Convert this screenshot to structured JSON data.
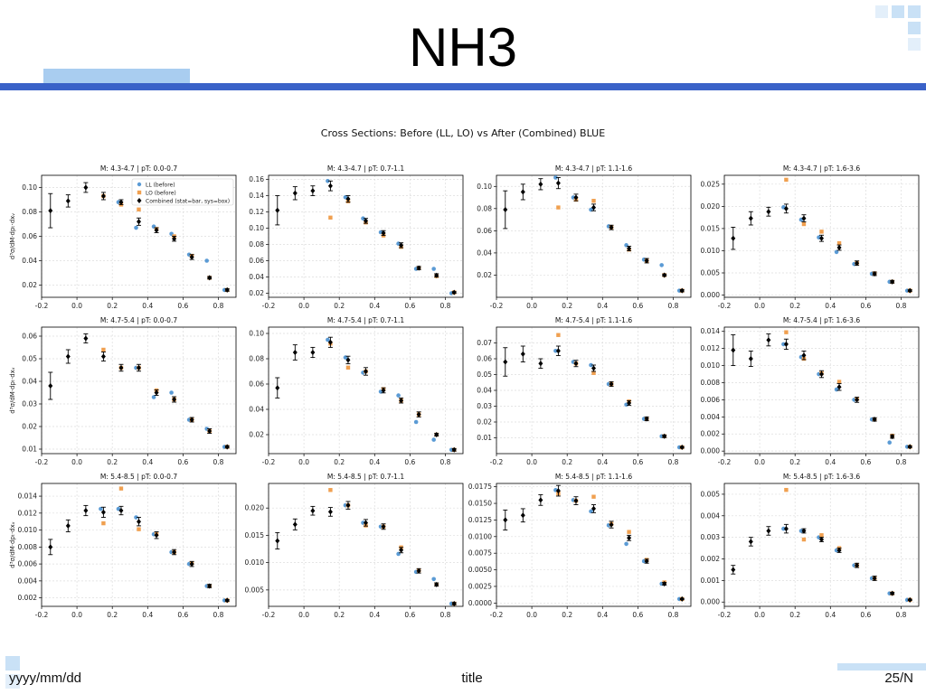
{
  "slide": {
    "title": "NH3",
    "footer_date": "yyyy/mm/dd",
    "footer_title": "title",
    "footer_page": "25/N"
  },
  "colors": {
    "accent_bar": "#3a62c8",
    "accent_light": "#a9cdf0",
    "ll": "#5b9bd5",
    "lo": "#f0a050",
    "combined": "#000000"
  },
  "chart_data": {
    "type": "scatter",
    "title": "Cross Sections: Before (LL, LO) vs After (Combined) BLUE",
    "ylabel": "d³σ/dM·dpₜ·dxᵥ",
    "legend": [
      "LL (before)",
      "LO (before)",
      "Combined (stat=bar, sys=box)"
    ],
    "legend_placement": "top-right",
    "grid": true,
    "xlim": [
      -0.2,
      0.9
    ],
    "x_ticks": [
      -0.2,
      0.0,
      0.2,
      0.4,
      0.6,
      0.8
    ],
    "x": [
      -0.15,
      -0.05,
      0.05,
      0.15,
      0.25,
      0.35,
      0.45,
      0.55,
      0.65,
      0.75,
      0.85
    ],
    "panels": [
      {
        "title": "M: 4.3-4.7 | pT: 0.0-0.7",
        "ylim": [
          0.01,
          0.11
        ],
        "yticks": [
          0.02,
          0.04,
          0.06,
          0.08,
          0.1
        ],
        "combined": [
          0.081,
          0.089,
          0.1,
          0.093,
          0.088,
          0.072,
          0.065,
          0.058,
          0.043,
          0.026,
          0.016
        ],
        "err": [
          0.014,
          0.005,
          0.004,
          0.003,
          0.002,
          0.003,
          0.002,
          0.002,
          0.002,
          0.001,
          0.001
        ],
        "ll": [
          null,
          null,
          null,
          null,
          0.088,
          0.067,
          0.068,
          0.062,
          0.045,
          0.04,
          0.016
        ],
        "lo": [
          null,
          null,
          null,
          0.093,
          0.086,
          0.082,
          0.066,
          0.06,
          0.044,
          0.026,
          0.016
        ]
      },
      {
        "title": "M: 4.3-4.7 | pT: 0.7-1.1",
        "ylim": [
          0.015,
          0.165
        ],
        "yticks": [
          0.02,
          0.04,
          0.06,
          0.08,
          0.1,
          0.12,
          0.14,
          0.16
        ],
        "combined": [
          0.122,
          0.143,
          0.146,
          0.152,
          0.136,
          0.109,
          0.094,
          0.079,
          0.051,
          0.042,
          0.021
        ],
        "err": [
          0.018,
          0.008,
          0.006,
          0.006,
          0.004,
          0.003,
          0.003,
          0.003,
          0.002,
          0.002,
          0.001
        ],
        "ll": [
          null,
          null,
          null,
          0.158,
          0.138,
          0.112,
          0.095,
          0.081,
          0.05,
          0.05,
          0.02
        ],
        "lo": [
          null,
          null,
          null,
          0.113,
          0.133,
          0.107,
          0.091,
          0.077,
          0.051,
          0.041,
          0.021
        ]
      },
      {
        "title": "M: 4.3-4.7 | pT: 1.1-1.6",
        "ylim": [
          0.0,
          0.11
        ],
        "yticks": [
          0.02,
          0.04,
          0.06,
          0.08,
          0.1
        ],
        "combined": [
          0.079,
          0.095,
          0.102,
          0.103,
          0.09,
          0.081,
          0.063,
          0.044,
          0.033,
          0.02,
          0.006
        ],
        "err": [
          0.017,
          0.007,
          0.005,
          0.005,
          0.003,
          0.003,
          0.002,
          0.002,
          0.002,
          0.001,
          0.001
        ],
        "ll": [
          null,
          null,
          null,
          0.108,
          0.09,
          0.079,
          0.064,
          0.047,
          0.034,
          0.029,
          0.006
        ],
        "lo": [
          null,
          null,
          null,
          0.081,
          0.088,
          0.087,
          0.063,
          0.043,
          0.033,
          0.02,
          0.006
        ]
      },
      {
        "title": "M: 4.3-4.7 | pT: 1.6-3.6",
        "ylim": [
          -0.0005,
          0.027
        ],
        "yticks": [
          0.0,
          0.005,
          0.01,
          0.015,
          0.02,
          0.025
        ],
        "combined": [
          0.0128,
          0.0173,
          0.0188,
          0.0195,
          0.0173,
          0.0128,
          0.0107,
          0.0072,
          0.0048,
          0.003,
          0.001
        ],
        "err": [
          0.0025,
          0.0015,
          0.001,
          0.001,
          0.0008,
          0.0007,
          0.0006,
          0.0005,
          0.0004,
          0.0003,
          0.0002
        ],
        "ll": [
          null,
          null,
          null,
          0.0198,
          0.017,
          0.013,
          0.0097,
          0.007,
          0.0048,
          0.003,
          0.001
        ],
        "lo": [
          null,
          null,
          null,
          0.026,
          0.016,
          0.0143,
          0.0117,
          0.0073,
          0.0049,
          0.003,
          0.001
        ]
      },
      {
        "title": "M: 4.7-5.4 | pT: 0.0-0.7",
        "ylim": [
          0.008,
          0.064
        ],
        "yticks": [
          0.01,
          0.02,
          0.03,
          0.04,
          0.05,
          0.06
        ],
        "combined": [
          0.038,
          0.051,
          0.059,
          0.051,
          0.046,
          0.046,
          0.035,
          0.032,
          0.023,
          0.018,
          0.011
        ],
        "err": [
          0.006,
          0.003,
          0.002,
          0.002,
          0.0015,
          0.0015,
          0.0012,
          0.0012,
          0.001,
          0.001,
          0.0005
        ],
        "ll": [
          null,
          null,
          null,
          null,
          null,
          0.046,
          0.033,
          0.035,
          0.023,
          0.019,
          0.011
        ],
        "lo": [
          null,
          null,
          null,
          0.054,
          0.046,
          0.046,
          0.036,
          0.032,
          0.023,
          0.018,
          0.011
        ]
      },
      {
        "title": "M: 4.7-5.4 | pT: 0.7-1.1",
        "ylim": [
          0.005,
          0.105
        ],
        "yticks": [
          0.02,
          0.04,
          0.06,
          0.08,
          0.1
        ],
        "combined": [
          0.057,
          0.085,
          0.085,
          0.093,
          0.079,
          0.07,
          0.055,
          0.047,
          0.036,
          0.02,
          0.008
        ],
        "err": [
          0.008,
          0.006,
          0.004,
          0.004,
          0.003,
          0.003,
          0.002,
          0.002,
          0.002,
          0.001,
          0.001
        ],
        "ll": [
          null,
          null,
          null,
          0.095,
          0.081,
          0.069,
          0.054,
          0.051,
          0.03,
          0.016,
          0.008
        ],
        "lo": [
          null,
          null,
          null,
          0.092,
          0.073,
          0.07,
          0.056,
          0.047,
          0.036,
          0.02,
          0.008
        ]
      },
      {
        "title": "M: 4.7-5.4 | pT: 1.1-1.6",
        "ylim": [
          0.0,
          0.08
        ],
        "yticks": [
          0.01,
          0.02,
          0.03,
          0.04,
          0.05,
          0.06,
          0.07
        ],
        "combined": [
          0.058,
          0.063,
          0.057,
          0.065,
          0.057,
          0.054,
          0.044,
          0.032,
          0.022,
          0.011,
          0.004
        ],
        "err": [
          0.009,
          0.005,
          0.003,
          0.003,
          0.002,
          0.002,
          0.0015,
          0.0015,
          0.0012,
          0.0008,
          0.0005
        ],
        "ll": [
          null,
          null,
          null,
          0.065,
          0.058,
          0.056,
          0.044,
          0.031,
          0.022,
          0.011,
          0.004
        ],
        "lo": [
          null,
          null,
          null,
          0.075,
          0.057,
          0.051,
          0.044,
          0.033,
          0.022,
          0.011,
          0.004
        ]
      },
      {
        "title": "M: 4.7-5.4 | pT: 1.6-3.6",
        "ylim": [
          -0.0003,
          0.0145
        ],
        "yticks": [
          0.0,
          0.002,
          0.004,
          0.006,
          0.008,
          0.01,
          0.012,
          0.014
        ],
        "combined": [
          0.0118,
          0.0108,
          0.013,
          0.0125,
          0.0112,
          0.009,
          0.0075,
          0.006,
          0.0037,
          0.0017,
          0.0005
        ],
        "err": [
          0.0018,
          0.0009,
          0.0007,
          0.0006,
          0.0005,
          0.0004,
          0.0004,
          0.0003,
          0.0002,
          0.0002,
          0.0001
        ],
        "ll": [
          null,
          null,
          null,
          0.0125,
          0.011,
          0.009,
          0.0072,
          0.006,
          0.0037,
          0.001,
          0.0005
        ],
        "lo": [
          null,
          null,
          null,
          0.0139,
          0.0108,
          0.0091,
          0.0081,
          0.0061,
          0.0037,
          0.0018,
          0.0005
        ]
      },
      {
        "title": "M: 5.4-8.5 | pT: 0.0-0.7",
        "ylim": [
          0.001,
          0.0155
        ],
        "yticks": [
          0.002,
          0.004,
          0.006,
          0.008,
          0.01,
          0.012,
          0.014
        ],
        "combined": [
          0.008,
          0.0105,
          0.0123,
          0.0121,
          0.0123,
          0.011,
          0.0094,
          0.0074,
          0.006,
          0.0034,
          0.0017
        ],
        "err": [
          0.0009,
          0.0007,
          0.0006,
          0.0006,
          0.0005,
          0.0005,
          0.0004,
          0.0003,
          0.0003,
          0.0002,
          0.0001
        ],
        "ll": [
          null,
          null,
          null,
          0.0125,
          0.0125,
          0.0115,
          0.0095,
          0.0074,
          0.006,
          0.0034,
          0.0017
        ],
        "lo": [
          null,
          null,
          null,
          0.0108,
          0.0149,
          0.0101,
          0.0095,
          0.0074,
          0.0061,
          0.0034,
          0.0017
        ]
      },
      {
        "title": "M: 5.4-8.5 | pT: 0.7-1.1",
        "ylim": [
          0.002,
          0.0245
        ],
        "yticks": [
          0.005,
          0.01,
          0.015,
          0.02
        ],
        "combined": [
          0.014,
          0.017,
          0.0195,
          0.0193,
          0.0205,
          0.0173,
          0.0166,
          0.0123,
          0.0085,
          0.006,
          0.0025
        ],
        "err": [
          0.0015,
          0.001,
          0.0008,
          0.0008,
          0.0007,
          0.0006,
          0.0005,
          0.0005,
          0.0004,
          0.0003,
          0.0002
        ],
        "ll": [
          null,
          null,
          null,
          null,
          0.0205,
          0.0173,
          0.0166,
          0.0116,
          0.0083,
          0.007,
          0.0025
        ],
        "lo": [
          null,
          null,
          null,
          0.0233,
          0.0205,
          0.0168,
          0.0166,
          0.0128,
          0.0086,
          0.006,
          0.0025
        ]
      },
      {
        "title": "M: 5.4-8.5 | pT: 1.1-1.6",
        "ylim": [
          -0.0005,
          0.018
        ],
        "yticks": [
          0.0,
          0.0025,
          0.005,
          0.0075,
          0.01,
          0.0125,
          0.015,
          0.0175
        ],
        "combined": [
          0.0125,
          0.0132,
          0.0155,
          0.0169,
          0.0154,
          0.0142,
          0.0118,
          0.0098,
          0.0063,
          0.0029,
          0.0006
        ],
        "err": [
          0.0015,
          0.001,
          0.0008,
          0.0008,
          0.0006,
          0.0006,
          0.0005,
          0.0004,
          0.0003,
          0.0002,
          0.0001
        ],
        "ll": [
          null,
          null,
          null,
          0.017,
          0.0155,
          0.0138,
          0.0117,
          0.0089,
          0.0063,
          0.0029,
          0.0006
        ],
        "lo": [
          null,
          null,
          null,
          0.0165,
          0.0154,
          0.016,
          0.0119,
          0.0107,
          0.0065,
          0.0031,
          0.0006
        ]
      },
      {
        "title": "M: 5.4-8.5 | pT: 1.6-3.6",
        "ylim": [
          -0.0002,
          0.0055
        ],
        "yticks": [
          0.0,
          0.001,
          0.002,
          0.003,
          0.004,
          0.005
        ],
        "combined": [
          0.0015,
          0.0028,
          0.0033,
          0.0034,
          0.0033,
          0.0029,
          0.0024,
          0.0017,
          0.0011,
          0.0004,
          0.0001
        ],
        "err": [
          0.0002,
          0.0002,
          0.0002,
          0.0002,
          0.0001,
          0.0001,
          0.0001,
          0.0001,
          0.0001,
          5e-05,
          3e-05
        ],
        "ll": [
          null,
          null,
          null,
          0.0034,
          0.0033,
          0.003,
          0.0024,
          0.0017,
          0.0011,
          0.0004,
          0.0001
        ],
        "lo": [
          null,
          null,
          null,
          0.0052,
          0.0029,
          0.0031,
          0.0025,
          0.0017,
          0.0011,
          0.0004,
          0.0001
        ]
      }
    ]
  }
}
